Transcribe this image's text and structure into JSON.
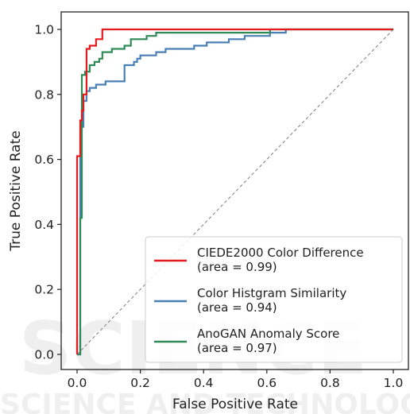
{
  "chart_data": {
    "type": "line",
    "title": "",
    "xlabel": "False Positive Rate",
    "ylabel": "True Positive Rate",
    "xlim": [
      0.0,
      1.0
    ],
    "ylim": [
      0.0,
      1.0
    ],
    "xticks": [
      "0.0",
      "0.2",
      "0.4",
      "0.6",
      "0.8",
      "1.0"
    ],
    "yticks": [
      "0.0",
      "0.2",
      "0.4",
      "0.6",
      "0.8",
      "1.0"
    ],
    "grid": false,
    "legend_position": "lower-right",
    "series": [
      {
        "name": "CIEDE2000 Color Difference",
        "area_label": "(area = 0.99)",
        "color": "#e41a1c",
        "x": [
          0,
          0,
          0.01,
          0.01,
          0.015,
          0.015,
          0.02,
          0.02,
          0.03,
          0.03,
          0.04,
          0.04,
          0.06,
          0.06,
          0.08,
          0.08,
          0.6,
          0.6,
          1.0
        ],
        "y": [
          0,
          0.61,
          0.61,
          0.72,
          0.72,
          0.75,
          0.75,
          0.8,
          0.8,
          0.94,
          0.94,
          0.95,
          0.95,
          0.97,
          0.97,
          1.0,
          1.0,
          1.0,
          1.0
        ]
      },
      {
        "name": "Color Histgram Similarity",
        "area_label": "(area = 0.94)",
        "color": "#4a7fb5",
        "x": [
          0,
          0.01,
          0.01,
          0.02,
          0.02,
          0.03,
          0.03,
          0.04,
          0.04,
          0.06,
          0.06,
          0.09,
          0.09,
          0.15,
          0.15,
          0.18,
          0.18,
          0.19,
          0.19,
          0.2,
          0.2,
          0.25,
          0.25,
          0.28,
          0.28,
          0.37,
          0.37,
          0.41,
          0.41,
          0.48,
          0.48,
          0.53,
          0.53,
          0.61,
          0.61,
          0.66,
          0.66,
          1.0
        ],
        "y": [
          0,
          0,
          0.7,
          0.7,
          0.78,
          0.78,
          0.81,
          0.81,
          0.82,
          0.82,
          0.83,
          0.83,
          0.84,
          0.84,
          0.89,
          0.89,
          0.9,
          0.9,
          0.91,
          0.91,
          0.92,
          0.92,
          0.93,
          0.93,
          0.94,
          0.94,
          0.95,
          0.95,
          0.96,
          0.96,
          0.97,
          0.97,
          0.98,
          0.98,
          0.99,
          0.99,
          1.0,
          1.0
        ]
      },
      {
        "name": "AnoGAN Anomaly Score",
        "area_label": "(area = 0.97)",
        "color": "#2e8b57",
        "x": [
          0,
          0.01,
          0.01,
          0.015,
          0.015,
          0.025,
          0.025,
          0.04,
          0.04,
          0.055,
          0.055,
          0.07,
          0.07,
          0.08,
          0.08,
          0.11,
          0.11,
          0.15,
          0.15,
          0.17,
          0.17,
          0.22,
          0.22,
          0.25,
          0.25,
          0.61,
          0.61,
          1.0
        ],
        "y": [
          0,
          0,
          0.42,
          0.42,
          0.86,
          0.86,
          0.87,
          0.87,
          0.89,
          0.89,
          0.9,
          0.9,
          0.91,
          0.91,
          0.93,
          0.93,
          0.94,
          0.94,
          0.95,
          0.95,
          0.97,
          0.97,
          0.98,
          0.98,
          0.99,
          0.99,
          1.0,
          1.0
        ]
      },
      {
        "name": "",
        "color": "#888888",
        "style": "dashed",
        "x": [
          0,
          1
        ],
        "y": [
          0,
          1
        ]
      }
    ]
  }
}
